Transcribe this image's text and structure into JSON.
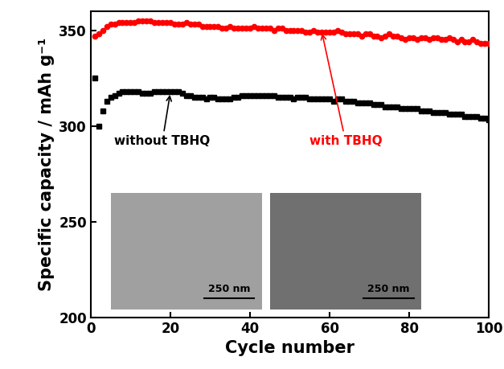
{
  "chart_data": {
    "type": "scatter",
    "x_label": "Cycle number",
    "y_label": "Specific capacity / mAh g⁻¹",
    "x": [
      1,
      2,
      3,
      4,
      5,
      6,
      7,
      8,
      9,
      10,
      11,
      12,
      13,
      14,
      15,
      16,
      17,
      18,
      19,
      20,
      21,
      22,
      23,
      24,
      25,
      26,
      27,
      28,
      29,
      30,
      31,
      32,
      33,
      34,
      35,
      36,
      37,
      38,
      39,
      40,
      41,
      42,
      43,
      44,
      45,
      46,
      47,
      48,
      49,
      50,
      51,
      52,
      53,
      54,
      55,
      56,
      57,
      58,
      59,
      60,
      61,
      62,
      63,
      64,
      65,
      66,
      67,
      68,
      69,
      70,
      71,
      72,
      73,
      74,
      75,
      76,
      77,
      78,
      79,
      80,
      81,
      82,
      83,
      84,
      85,
      86,
      87,
      88,
      89,
      90,
      91,
      92,
      93,
      94,
      95,
      96,
      97,
      98,
      99,
      100
    ],
    "series": [
      {
        "name": "without TBHQ",
        "color": "#000000",
        "marker": "s",
        "line_style": "none",
        "values": [
          325,
          300,
          308,
          313,
          315,
          316,
          317,
          318,
          318,
          318,
          318,
          318,
          317,
          317,
          317,
          318,
          318,
          318,
          318,
          318,
          318,
          318,
          317,
          316,
          316,
          315,
          315,
          315,
          314,
          315,
          315,
          314,
          314,
          314,
          314,
          315,
          315,
          316,
          316,
          316,
          316,
          316,
          316,
          316,
          316,
          316,
          315,
          315,
          315,
          315,
          314,
          315,
          315,
          315,
          314,
          314,
          314,
          314,
          314,
          314,
          313,
          314,
          314,
          313,
          313,
          313,
          312,
          312,
          312,
          312,
          311,
          311,
          311,
          310,
          310,
          310,
          310,
          309,
          309,
          309,
          309,
          309,
          308,
          308,
          308,
          307,
          307,
          307,
          307,
          306,
          306,
          306,
          306,
          305,
          305,
          305,
          305,
          304,
          304,
          303
        ]
      },
      {
        "name": "with TBHQ",
        "color": "#ff0000",
        "marker": "o",
        "line_style": "none",
        "values": [
          347,
          348,
          350,
          352,
          353,
          353,
          354,
          354,
          354,
          354,
          354,
          355,
          355,
          355,
          355,
          354,
          354,
          354,
          354,
          354,
          353,
          353,
          353,
          354,
          353,
          353,
          353,
          352,
          352,
          352,
          352,
          352,
          351,
          351,
          352,
          351,
          351,
          351,
          351,
          351,
          352,
          351,
          351,
          351,
          351,
          350,
          351,
          351,
          350,
          350,
          350,
          350,
          350,
          349,
          349,
          350,
          349,
          349,
          349,
          349,
          349,
          350,
          349,
          348,
          348,
          348,
          348,
          347,
          348,
          348,
          347,
          347,
          346,
          347,
          348,
          347,
          347,
          346,
          345,
          346,
          346,
          345,
          346,
          346,
          345,
          346,
          346,
          345,
          345,
          346,
          345,
          344,
          345,
          344,
          344,
          345,
          344,
          343,
          343,
          343
        ]
      }
    ],
    "xlim": [
      0,
      100
    ],
    "xticks": [
      0,
      20,
      40,
      60,
      80,
      100
    ],
    "ylim": [
      200,
      360
    ],
    "yticks": [
      200,
      250,
      300,
      350
    ],
    "grid": false,
    "inset_scale_bars": [
      "250 nm",
      "250 nm"
    ]
  }
}
